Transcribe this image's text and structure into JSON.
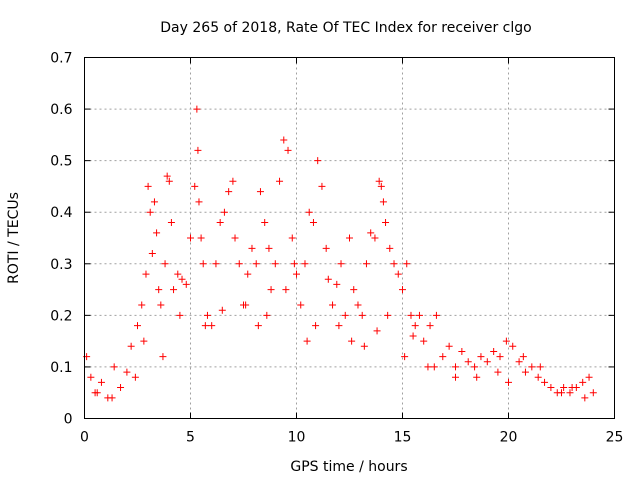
{
  "chart_data": {
    "type": "scatter",
    "title": "Day 265 of 2018, Rate Of TEC Index for receiver clgo",
    "xlabel": "GPS time / hours",
    "ylabel": "ROTI / TECUs",
    "xlim": [
      0,
      25
    ],
    "ylim": [
      0,
      0.7
    ],
    "xticks": [
      "0",
      "5",
      "10",
      "15",
      "20",
      "25"
    ],
    "yticks": [
      "0",
      "0.1",
      "0.2",
      "0.3",
      "0.4",
      "0.5",
      "0.6",
      "0.7"
    ],
    "grid": true,
    "marker": "+",
    "marker_color": "#ff0000",
    "series": [
      {
        "name": "ROTI",
        "x": [
          0.1,
          0.3,
          0.5,
          0.8,
          1.1,
          1.4,
          1.7,
          2.0,
          2.2,
          2.5,
          2.7,
          2.9,
          3.0,
          3.1,
          3.2,
          3.3,
          3.4,
          3.5,
          3.6,
          3.8,
          3.9,
          4.0,
          4.1,
          4.2,
          4.4,
          4.6,
          4.8,
          5.0,
          5.2,
          5.3,
          5.35,
          5.4,
          5.5,
          5.6,
          5.8,
          6.0,
          6.2,
          6.4,
          6.6,
          6.8,
          7.0,
          7.1,
          7.3,
          7.5,
          7.7,
          7.9,
          8.1,
          8.3,
          8.5,
          8.7,
          8.8,
          9.0,
          9.2,
          9.4,
          9.6,
          9.8,
          9.9,
          10.0,
          10.2,
          10.4,
          10.6,
          10.8,
          11.0,
          11.2,
          11.4,
          11.5,
          11.7,
          11.9,
          12.1,
          12.3,
          12.5,
          12.7,
          12.9,
          13.1,
          13.3,
          13.5,
          13.7,
          13.9,
          14.0,
          14.1,
          14.2,
          14.4,
          14.6,
          14.8,
          15.0,
          15.2,
          15.4,
          15.6,
          15.8,
          16.0,
          16.3,
          16.6,
          16.9,
          17.2,
          17.5,
          17.8,
          18.1,
          18.4,
          18.7,
          19.0,
          19.3,
          19.6,
          19.9,
          20.2,
          20.5,
          20.8,
          21.1,
          21.4,
          21.7,
          22.0,
          22.3,
          22.6,
          22.9,
          23.2,
          23.5,
          23.8,
          24.0,
          2.8,
          4.5,
          6.5,
          8.2,
          9.5,
          10.5,
          12.0,
          13.2,
          14.3,
          15.5,
          16.5,
          17.5,
          19.5,
          20.7,
          21.5,
          23.0,
          0.6,
          1.3,
          2.4,
          3.7,
          5.7,
          7.6,
          8.6,
          10.9,
          12.6,
          13.8,
          15.1,
          16.2,
          18.5,
          20.0,
          22.5,
          23.6
        ],
        "y": [
          0.12,
          0.08,
          0.05,
          0.07,
          0.04,
          0.1,
          0.06,
          0.09,
          0.14,
          0.18,
          0.22,
          0.28,
          0.45,
          0.4,
          0.32,
          0.42,
          0.36,
          0.25,
          0.22,
          0.3,
          0.47,
          0.46,
          0.38,
          0.25,
          0.28,
          0.27,
          0.26,
          0.35,
          0.45,
          0.6,
          0.52,
          0.42,
          0.35,
          0.3,
          0.2,
          0.18,
          0.3,
          0.38,
          0.4,
          0.44,
          0.46,
          0.35,
          0.3,
          0.22,
          0.28,
          0.33,
          0.3,
          0.44,
          0.38,
          0.33,
          0.25,
          0.3,
          0.46,
          0.54,
          0.52,
          0.35,
          0.3,
          0.28,
          0.22,
          0.3,
          0.4,
          0.38,
          0.5,
          0.45,
          0.33,
          0.27,
          0.22,
          0.26,
          0.3,
          0.2,
          0.35,
          0.25,
          0.22,
          0.2,
          0.3,
          0.36,
          0.35,
          0.46,
          0.45,
          0.42,
          0.38,
          0.33,
          0.3,
          0.28,
          0.25,
          0.3,
          0.2,
          0.18,
          0.2,
          0.15,
          0.18,
          0.2,
          0.12,
          0.14,
          0.1,
          0.13,
          0.11,
          0.1,
          0.12,
          0.11,
          0.13,
          0.12,
          0.15,
          0.14,
          0.11,
          0.09,
          0.1,
          0.08,
          0.07,
          0.06,
          0.05,
          0.06,
          0.05,
          0.06,
          0.07,
          0.08,
          0.05,
          0.15,
          0.2,
          0.21,
          0.18,
          0.25,
          0.15,
          0.18,
          0.14,
          0.2,
          0.16,
          0.1,
          0.08,
          0.09,
          0.12,
          0.1,
          0.06,
          0.05,
          0.04,
          0.08,
          0.12,
          0.18,
          0.22,
          0.2,
          0.18,
          0.15,
          0.17,
          0.12,
          0.1,
          0.08,
          0.07,
          0.05,
          0.04
        ]
      }
    ]
  }
}
